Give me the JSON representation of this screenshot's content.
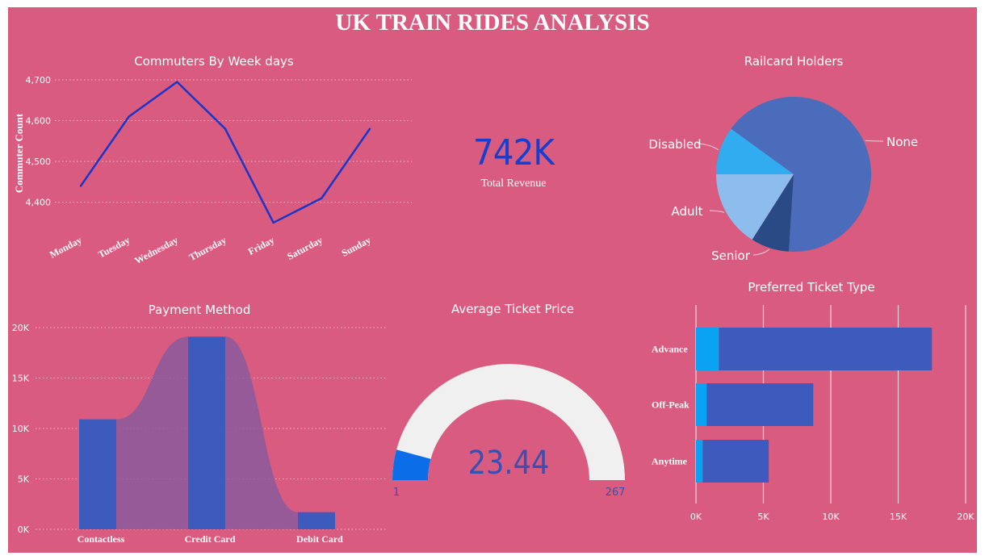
{
  "dashboard": {
    "title": "UK TRAIN RIDES ANALYSIS"
  },
  "kpi": {
    "value": "742K",
    "label": "Total Revenue"
  },
  "colors": {
    "background": "#d95b80",
    "line": "#1a35c9",
    "bar": "#3d5bbd",
    "area": "#8a5a9e",
    "gauge_track": "#f0f0f0",
    "gauge_fill": "#0b6ee8",
    "pie": [
      "#4a6cbb",
      "#2a4a85",
      "#8dbdec",
      "#31acf0"
    ],
    "ticket_accent": "#0aa2f2"
  },
  "chart_data": [
    {
      "id": "weekday",
      "type": "line",
      "title": "Commuters By Week days",
      "ylabel": "Commuter Count",
      "xlabel": "",
      "categories": [
        "Monday",
        "Tuesday",
        "Wednesday",
        "Thursday",
        "Friday",
        "Saturday",
        "Sunday"
      ],
      "values": [
        4440,
        4610,
        4695,
        4580,
        4350,
        4410,
        4580
      ],
      "ylim": [
        4340,
        4700
      ],
      "yticks": [
        4400,
        4500,
        4600,
        4700
      ],
      "ytick_labels": [
        "4,400",
        "4,500",
        "4,600",
        "4,700"
      ],
      "grid": true
    },
    {
      "id": "railcard",
      "type": "pie",
      "title": "Railcard Holders",
      "slices": [
        {
          "label": "None",
          "value": 66
        },
        {
          "label": "Senior",
          "value": 8
        },
        {
          "label": "Adult",
          "value": 16
        },
        {
          "label": "Disabled",
          "value": 10
        }
      ]
    },
    {
      "id": "payment",
      "type": "bar",
      "title": "Payment Method",
      "categories": [
        "Contactless",
        "Credit Card",
        "Debit Card"
      ],
      "values": [
        10900,
        19100,
        1700
      ],
      "ylim": [
        0,
        20000
      ],
      "yticks": [
        0,
        5000,
        10000,
        15000,
        20000
      ],
      "ytick_labels": [
        "0K",
        "5K",
        "10K",
        "15K",
        "20K"
      ],
      "grid": true
    },
    {
      "id": "gauge",
      "type": "gauge",
      "title": "Average Ticket Price",
      "value": 23.44,
      "min": 1,
      "max": 267,
      "value_label": "23.44",
      "min_label": "1",
      "max_label": "267"
    },
    {
      "id": "ticket",
      "type": "bar",
      "orientation": "horizontal",
      "title": "Preferred Ticket Type",
      "categories": [
        "Advance",
        "Off-Peak",
        "Anytime"
      ],
      "series": [
        {
          "values": [
            1700,
            800,
            500
          ]
        },
        {
          "values": [
            15800,
            7900,
            4900
          ]
        }
      ],
      "xlim": [
        0,
        20000
      ],
      "xticks": [
        0,
        5000,
        10000,
        15000,
        20000
      ],
      "xtick_labels": [
        "0K",
        "5K",
        "10K",
        "15K",
        "20K"
      ],
      "grid": true
    }
  ]
}
